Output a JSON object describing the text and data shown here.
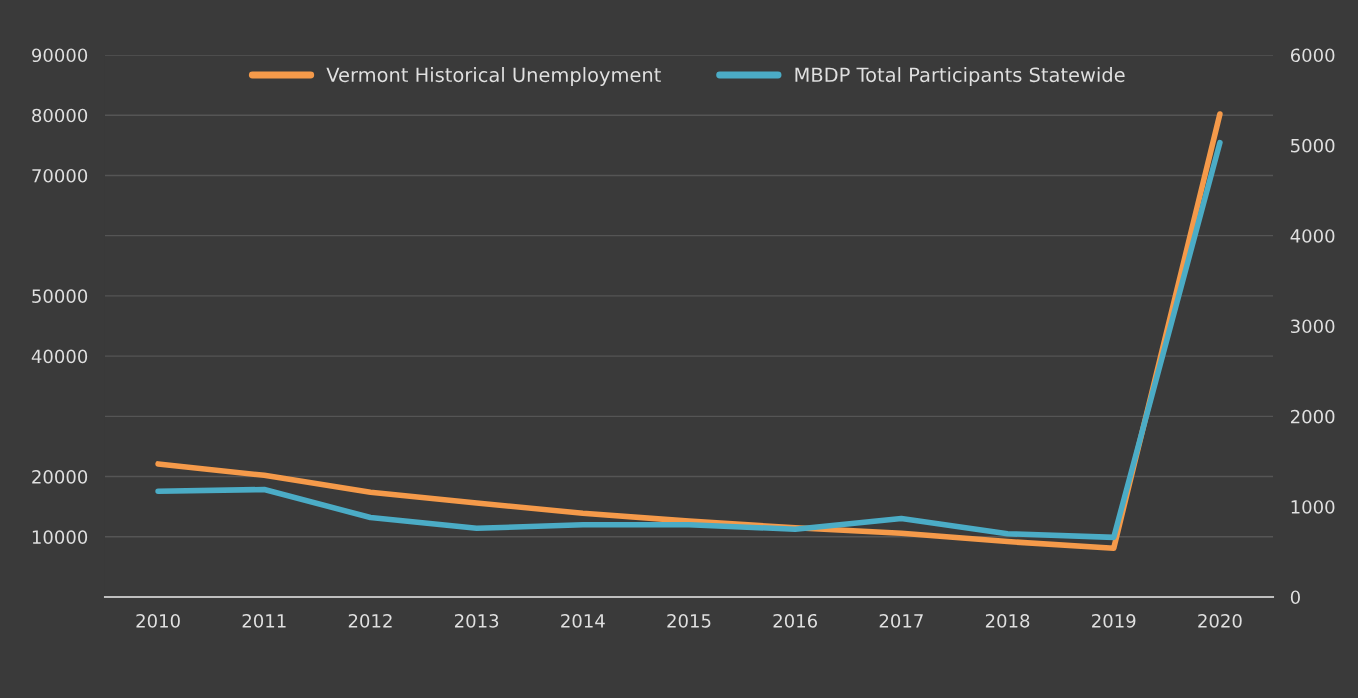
{
  "chart_data": {
    "type": "line",
    "categories": [
      "2010",
      "2011",
      "2012",
      "2013",
      "2014",
      "2015",
      "2016",
      "2017",
      "2018",
      "2019",
      "2020"
    ],
    "series": [
      {
        "name": "Vermont Historical Unemployment",
        "color": "#f59a4a",
        "values": [
          22100,
          20200,
          17400,
          15600,
          13900,
          12600,
          11500,
          10600,
          9200,
          8100,
          80200
        ]
      },
      {
        "name": "MBDP Total Participants Statewide",
        "color": "#4bacc6",
        "axis": "y2",
        "values": [
          1170,
          1190,
          880,
          760,
          800,
          800,
          750,
          870,
          700,
          660,
          5030
        ]
      }
    ],
    "ylim": [
      0,
      90000
    ],
    "yticks": [
      10000,
      20000,
      {
        "value": 30000,
        "label": null
      },
      40000,
      50000,
      {
        "value": 60000,
        "label": null
      },
      70000,
      80000,
      90000
    ],
    "y2lim": [
      0,
      6000
    ],
    "y2ticks": [
      0,
      1000,
      2000,
      3000,
      4000,
      5000,
      6000
    ],
    "grid": "y",
    "legend": "top",
    "marker": "none",
    "line_style": "solid"
  }
}
